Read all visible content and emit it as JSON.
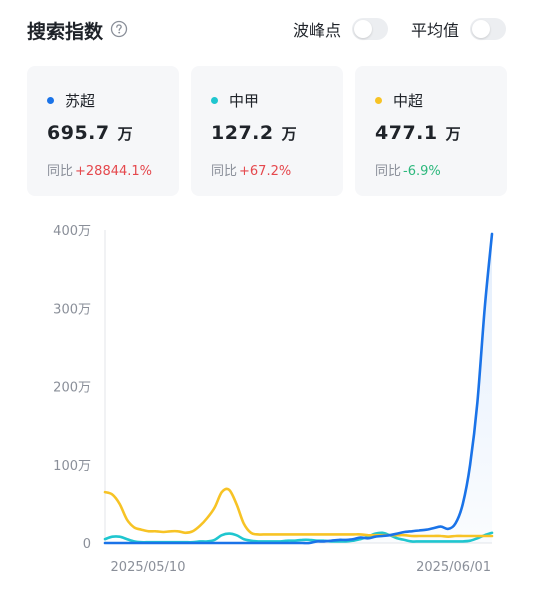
{
  "header": {
    "title": "搜索指数",
    "toggles": [
      {
        "label": "波峰点",
        "on": false
      },
      {
        "label": "平均值",
        "on": false
      }
    ]
  },
  "cards": [
    {
      "name": "苏超",
      "value": "695.7",
      "unit": "万",
      "change_label": "同比",
      "change": "+28844.1%",
      "direction": "up",
      "color": "#1a73e8"
    },
    {
      "name": "中甲",
      "value": "127.2",
      "unit": "万",
      "change_label": "同比",
      "change": "+67.2%",
      "direction": "up",
      "color": "#1fc6cf"
    },
    {
      "name": "中超",
      "value": "477.1",
      "unit": "万",
      "change_label": "同比",
      "change": "-6.9%",
      "direction": "down",
      "color": "#f7c325"
    }
  ],
  "chart_data": {
    "type": "line",
    "y_tick_labels": [
      "400万",
      "300万",
      "200万",
      "100万",
      "0"
    ],
    "x_tick_labels": [
      "2025/05/10",
      "2025/06/01"
    ],
    "ylim": [
      0,
      4000000
    ],
    "grid": false,
    "legend": "cards-above",
    "series": [
      {
        "name": "苏超",
        "color": "#1a73e8",
        "values": [
          0,
          0,
          0,
          0,
          0,
          0,
          0,
          0,
          0,
          0,
          0,
          0,
          0,
          0,
          0,
          0,
          0,
          0,
          0,
          0,
          0,
          0,
          0,
          0,
          0,
          0,
          0,
          0,
          0,
          20000,
          20000,
          30000,
          40000,
          40000,
          50000,
          70000,
          60000,
          80000,
          90000,
          100000,
          120000,
          140000,
          150000,
          160000,
          170000,
          190000,
          210000,
          180000,
          250000,
          500000,
          1000000,
          1800000,
          3000000,
          3950000
        ]
      },
      {
        "name": "中甲",
        "color": "#1fc6cf",
        "values": [
          50000,
          80000,
          80000,
          50000,
          20000,
          10000,
          10000,
          10000,
          10000,
          10000,
          10000,
          10000,
          10000,
          20000,
          20000,
          40000,
          100000,
          120000,
          100000,
          50000,
          30000,
          20000,
          20000,
          20000,
          20000,
          30000,
          30000,
          40000,
          40000,
          30000,
          30000,
          20000,
          20000,
          20000,
          30000,
          50000,
          80000,
          120000,
          130000,
          100000,
          60000,
          40000,
          20000,
          20000,
          20000,
          20000,
          20000,
          20000,
          20000,
          20000,
          30000,
          60000,
          100000,
          130000
        ]
      },
      {
        "name": "中超",
        "color": "#f7c325",
        "values": [
          650000,
          620000,
          500000,
          300000,
          200000,
          170000,
          150000,
          150000,
          140000,
          150000,
          150000,
          130000,
          150000,
          220000,
          320000,
          450000,
          650000,
          680000,
          500000,
          250000,
          130000,
          110000,
          110000,
          110000,
          110000,
          110000,
          110000,
          110000,
          110000,
          110000,
          110000,
          110000,
          110000,
          110000,
          110000,
          110000,
          100000,
          100000,
          100000,
          100000,
          100000,
          100000,
          90000,
          90000,
          90000,
          90000,
          90000,
          80000,
          90000,
          90000,
          90000,
          90000,
          90000,
          90000
        ]
      }
    ]
  }
}
